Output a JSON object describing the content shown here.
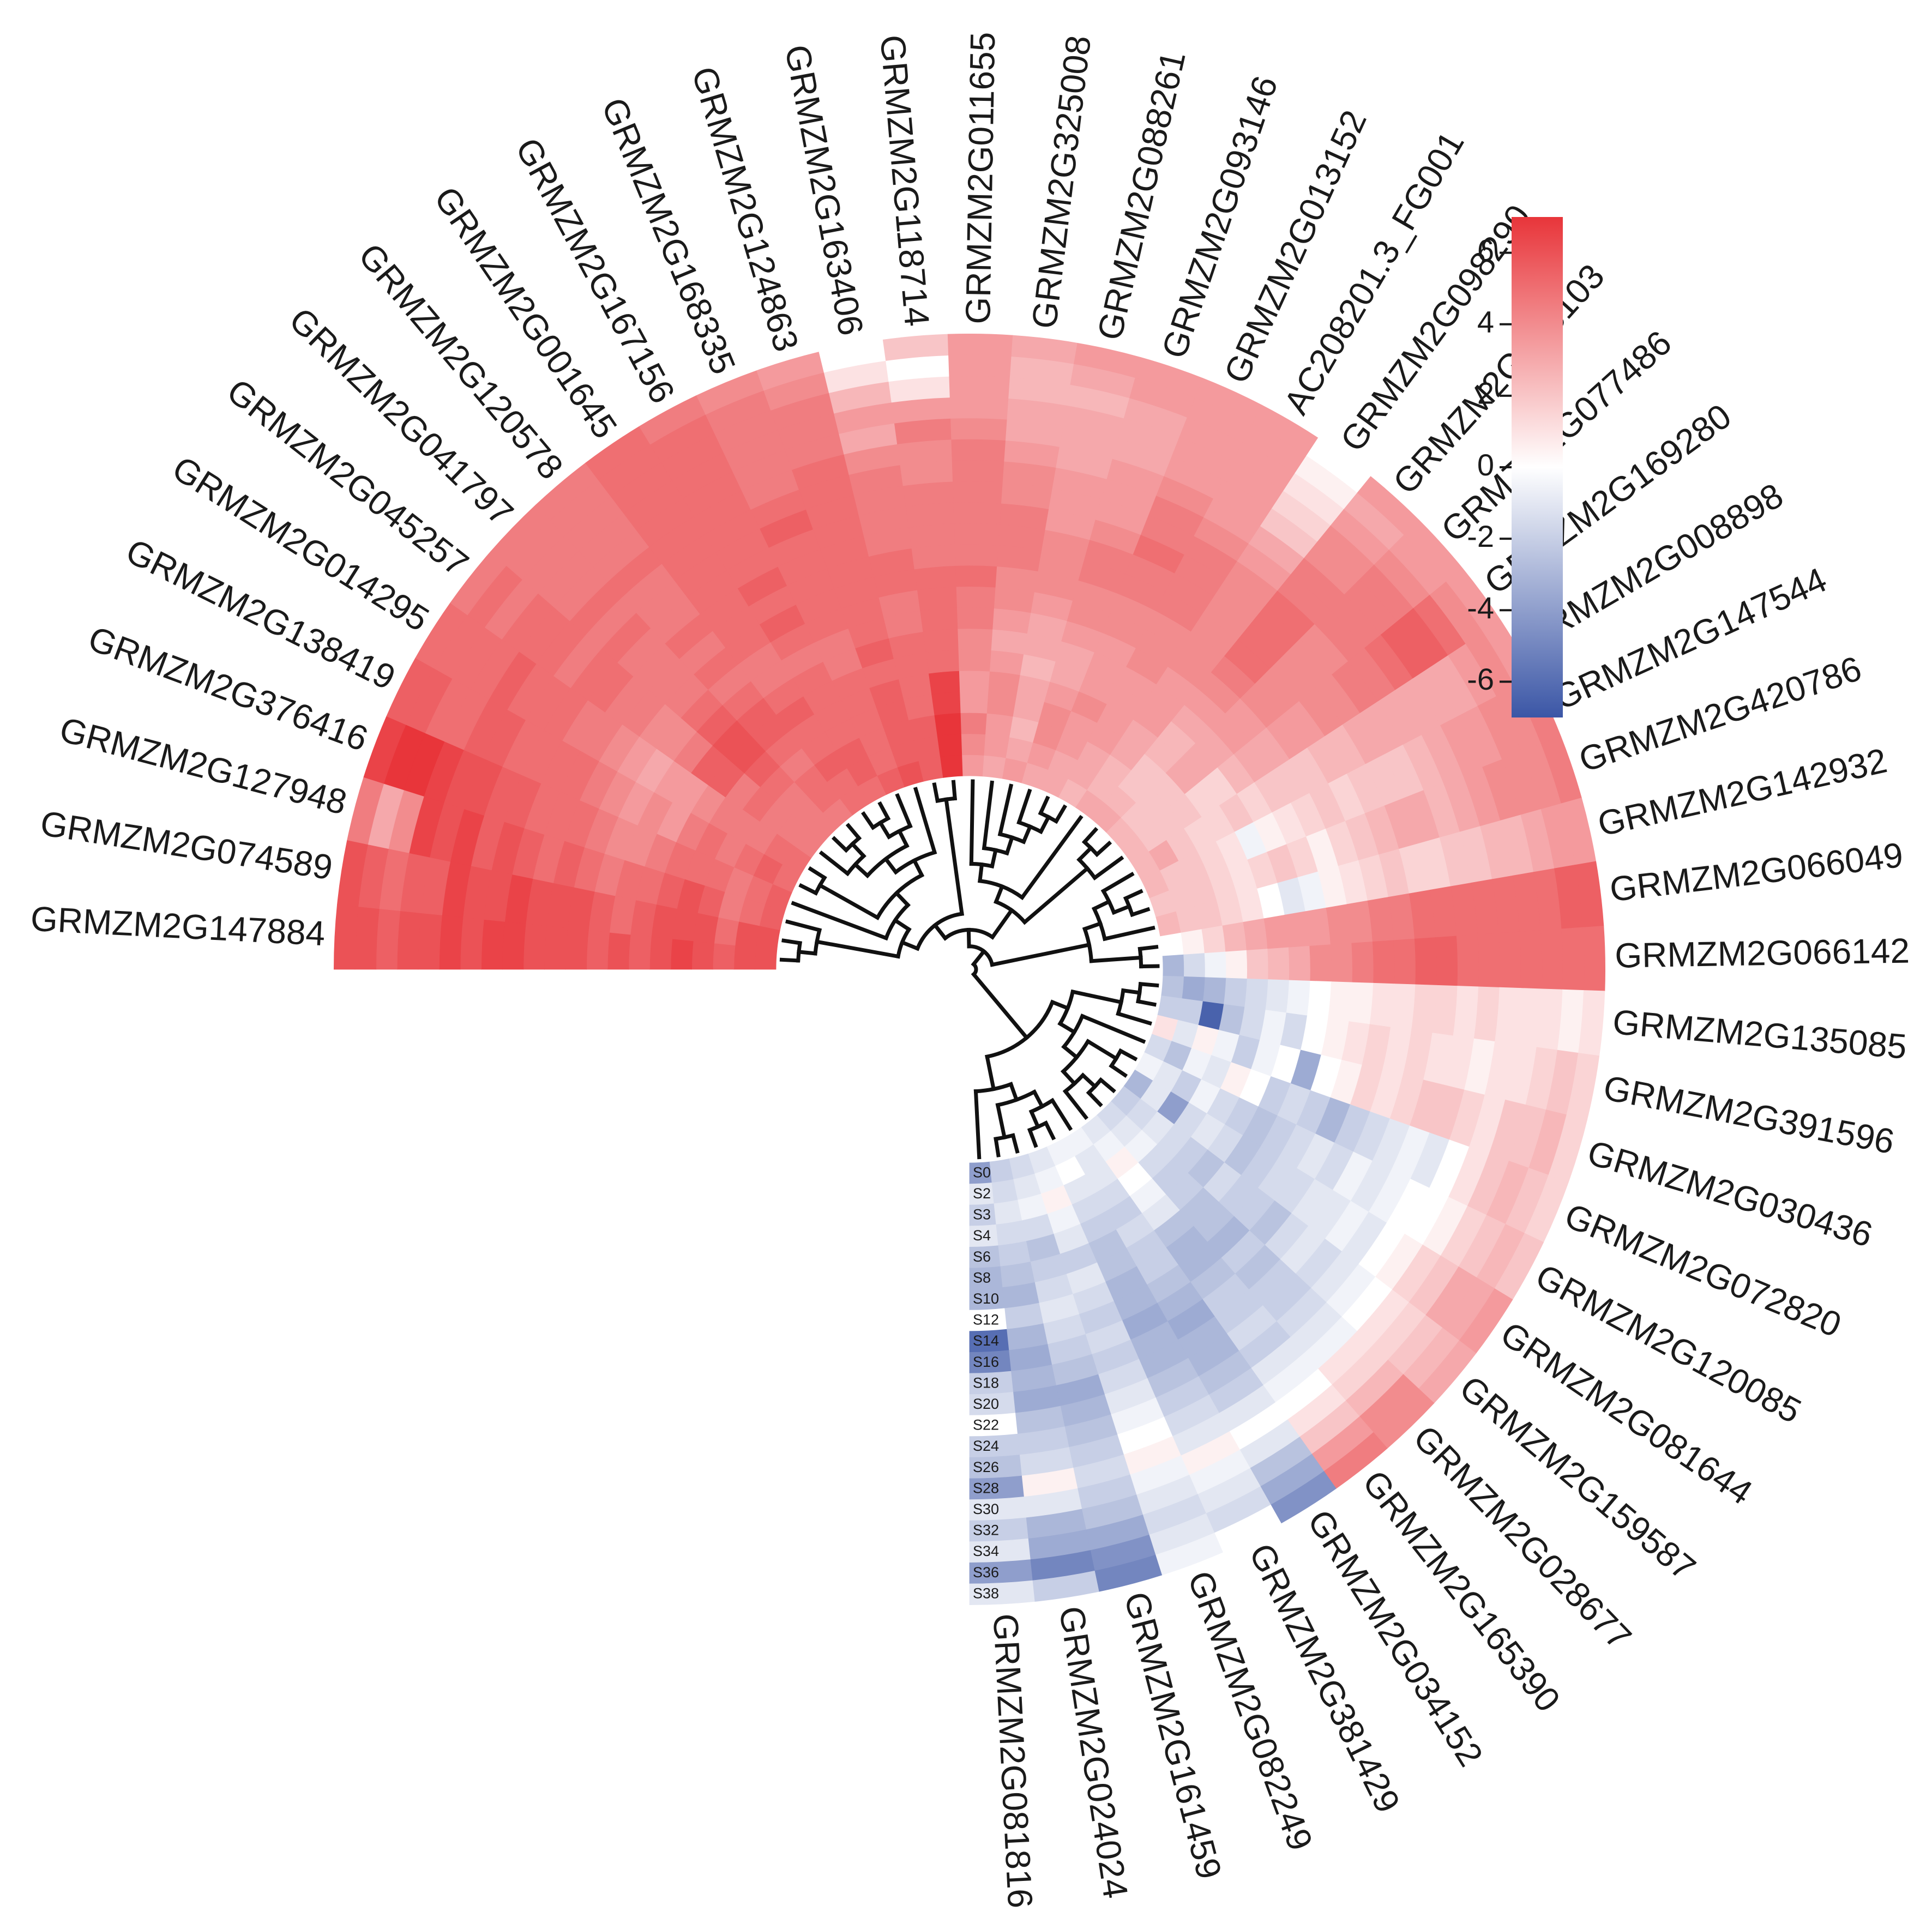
{
  "chart_data": {
    "type": "heatmap",
    "layout": "circular",
    "title": "",
    "genes_clockwise": [
      "GRMZM2G147884",
      "GRMZM2G074589",
      "GRMZM2G127948",
      "GRMZM2G376416",
      "GRMZM2G138419",
      "GRMZM2G014295",
      "GRMZM2G045257",
      "GRMZM2G041797",
      "GRMZM2G120578",
      "GRMZM2G001645",
      "GRMZM2G167156",
      "GRMZM2G168335",
      "GRMZM2G124863",
      "GRMZM2G163406",
      "GRMZM2G118714",
      "GRMZM2G011655",
      "GRMZM2G325008",
      "GRMZM2G088261",
      "GRMZM2G093146",
      "GRMZM2G013152",
      "AC208201.3_FG001",
      "GRMZM2G098290",
      "GRMZM2G153103",
      "GRMZM2G077486",
      "GRMZM2G169280",
      "GRMZM2G008898",
      "GRMZM2G147544",
      "GRMZM2G420786",
      "GRMZM2G142932",
      "GRMZM2G066049",
      "GRMZM2G066142",
      "GRMZM2G135085",
      "GRMZM2G391596",
      "GRMZM2G030436",
      "GRMZM2G072820",
      "GRMZM2G120085",
      "GRMZM2G081644",
      "GRMZM2G159587",
      "GRMZM2G028677",
      "GRMZM2G165390",
      "GRMZM2G034152",
      "GRMZM2G381429",
      "GRMZM2G082249",
      "GRMZM2G161459",
      "GRMZM2G024024",
      "GRMZM2G081816"
    ],
    "samples_inner_to_outer": [
      "S0",
      "S2",
      "S3",
      "S4",
      "S6",
      "S8",
      "S10",
      "S12",
      "S14",
      "S16",
      "S18",
      "S20",
      "S22",
      "S24",
      "S26",
      "S28",
      "S30",
      "S32",
      "S34",
      "S36",
      "S38"
    ],
    "values": [
      [
        6,
        6,
        5.5,
        6,
        6.5,
        6,
        5.5,
        6,
        5.5,
        6,
        6,
        6,
        6.5,
        6.5,
        6,
        6.5,
        6,
        6,
        5.5,
        6,
        6
      ],
      [
        6,
        6,
        5,
        6,
        6,
        6,
        5.5,
        5,
        5.5,
        6,
        6,
        6,
        6.5,
        6,
        6,
        6.5,
        5.5,
        5.5,
        5,
        5.5,
        6
      ],
      [
        5.5,
        5,
        4.5,
        5.5,
        6,
        5.5,
        5,
        5,
        4.5,
        5,
        5.5,
        5,
        5.5,
        6,
        5.5,
        6.5,
        6,
        6.5,
        4,
        3,
        4.5
      ],
      [
        5.5,
        5,
        4.5,
        5,
        5,
        5,
        4.5,
        4,
        4,
        4.5,
        5,
        5,
        5,
        5.5,
        5.5,
        6,
        6,
        6.5,
        7,
        7,
        6.5
      ],
      [
        5,
        5.5,
        5,
        4.5,
        5,
        4.5,
        3.5,
        4,
        3.5,
        4,
        4.5,
        5,
        5,
        5,
        5,
        5.5,
        5.5,
        5,
        5,
        5.5,
        5.5
      ],
      [
        5,
        5,
        4.5,
        4.5,
        4.5,
        4,
        3.5,
        3.5,
        3,
        3.5,
        4,
        4.5,
        4.5,
        5,
        5,
        5,
        5.5,
        5,
        5,
        5,
        5
      ],
      [
        4.5,
        4.5,
        4.5,
        5,
        4.5,
        5.5,
        5.5,
        4.5,
        4,
        4,
        4.5,
        4.5,
        5,
        5,
        4.5,
        5,
        5,
        5,
        4.5,
        5,
        4.5
      ],
      [
        4.5,
        4.5,
        4.5,
        5,
        5.5,
        6,
        6,
        5.5,
        5,
        4.5,
        4.5,
        4.5,
        4.5,
        5,
        4.5,
        5,
        4.5,
        4.5,
        4.5,
        4.5,
        4.5
      ],
      [
        4.5,
        5,
        5,
        4.5,
        5,
        5.5,
        5.5,
        5,
        4.5,
        5,
        4.5,
        5,
        4.5,
        4.5,
        4.5,
        5,
        4.5,
        4.5,
        4.5,
        4.5,
        4.5
      ],
      [
        5,
        5,
        5.5,
        5,
        5,
        5.5,
        5,
        4.5,
        4.5,
        5,
        5,
        5,
        5,
        5,
        5,
        5,
        5,
        5,
        5,
        5,
        5
      ],
      [
        5,
        5.5,
        5.5,
        5,
        5,
        5,
        5,
        4.5,
        5,
        5.5,
        5,
        5.5,
        5,
        5,
        5,
        5,
        5,
        5,
        5,
        5,
        4.5
      ],
      [
        5.5,
        5,
        5,
        5,
        5,
        5,
        4.5,
        4.5,
        5,
        5,
        5,
        5,
        5,
        5.5,
        5,
        4.5,
        4.5,
        4.5,
        4.5,
        4.5,
        4
      ],
      [
        6,
        5.5,
        5.5,
        5.5,
        5.5,
        5,
        5.5,
        5,
        5,
        5,
        5,
        5,
        5,
        5,
        5,
        5,
        4.5,
        4.5,
        4.5,
        4,
        3.5
      ],
      [
        5.5,
        5.5,
        5.5,
        5,
        5,
        5,
        5,
        4.5,
        4.5,
        5,
        5,
        4.5,
        4.5,
        4.5,
        4.5,
        4,
        3,
        3.5,
        2.5,
        1,
        0
      ],
      [
        7,
        7,
        7,
        6.5,
        6.5,
        5,
        5,
        5,
        5,
        5,
        4.5,
        4.5,
        4.5,
        4.5,
        4,
        4,
        4.5,
        3.5,
        1,
        0,
        2
      ],
      [
        3.5,
        4,
        4.5,
        3.5,
        3.5,
        4,
        4,
        4.5,
        4.5,
        5,
        4.5,
        4.5,
        4.5,
        4.5,
        4.5,
        4.5,
        4,
        3.5,
        3.5,
        3.5,
        3.5
      ],
      [
        3,
        3.5,
        3.5,
        4,
        4,
        3.5,
        3,
        3.5,
        4,
        4,
        4.5,
        4.5,
        4.5,
        4,
        4,
        3.5,
        3,
        3,
        2.5,
        2.5,
        3
      ],
      [
        3.5,
        3,
        2.5,
        3,
        3,
        2.5,
        3,
        3,
        3.5,
        4,
        4,
        4,
        3.5,
        3.5,
        3.5,
        3,
        3,
        3,
        2.5,
        3,
        3.5
      ],
      [
        3,
        3.5,
        4,
        4,
        3.5,
        3,
        3,
        3.5,
        4,
        4,
        4.5,
        4.5,
        4,
        3.5,
        3.5,
        3.5,
        3,
        3,
        3,
        3.5,
        3.5
      ],
      [
        3,
        3,
        3.5,
        3.5,
        4,
        3.5,
        3.5,
        3.5,
        4,
        4,
        4.5,
        4.5,
        5,
        4.5,
        4.5,
        4,
        3.5,
        3.5,
        3.5,
        3.5,
        3.5
      ],
      [
        2.5,
        3,
        3,
        3.5,
        3.5,
        3.5,
        3.5,
        4,
        4,
        4,
        4.5,
        4.5,
        4.5,
        4.5,
        4,
        3.5,
        3.5,
        3.5,
        3.5,
        3.5,
        3.5
      ],
      [
        3,
        2.5,
        2.5,
        3,
        3,
        3.5,
        3.5,
        3.5,
        4,
        4,
        4,
        4,
        4,
        4,
        3.5,
        3,
        2,
        1.5,
        1,
        0.5,
        0
      ],
      [
        3,
        2.5,
        2,
        2,
        2.5,
        2.5,
        3,
        3.5,
        4,
        4.5,
        5,
        5,
        5,
        5,
        4.5,
        4.5,
        4,
        4,
        3.5,
        3,
        3.5
      ],
      [
        2.5,
        2,
        2,
        2,
        3,
        3,
        3,
        3.5,
        3.5,
        4,
        4,
        4,
        4,
        4,
        4.5,
        4.5,
        4.5,
        4.5,
        4,
        3.5,
        3.5
      ],
      [
        2.5,
        2,
        2,
        2,
        1.5,
        1.5,
        2.5,
        3,
        3,
        3.5,
        3.5,
        4,
        4,
        4.5,
        4.5,
        5,
        5.5,
        5.5,
        5,
        4,
        3.5
      ],
      [
        2.5,
        3,
        2,
        1.5,
        1.5,
        2,
        1.5,
        2,
        2,
        2,
        2.5,
        2.5,
        3,
        3,
        3,
        3,
        3,
        3,
        3.5,
        4,
        3.5
      ],
      [
        2.5,
        2,
        2,
        1.5,
        1,
        -0.5,
        0.5,
        1,
        1.5,
        2,
        1.5,
        2,
        2,
        2,
        2.5,
        3,
        3.5,
        3.5,
        4,
        4,
        4.5
      ],
      [
        2,
        2,
        2,
        1.5,
        1,
        1.5,
        2,
        1.5,
        0.5,
        1.5,
        2,
        2.5,
        3,
        3,
        2.5,
        3,
        3.5,
        4,
        4,
        4,
        4.5
      ],
      [
        2.5,
        2,
        2,
        1.5,
        1,
        0,
        -1,
        -0.5,
        0.5,
        1,
        1.5,
        2,
        1.5,
        1.5,
        2,
        2,
        2.5,
        2.5,
        3,
        3.5,
        3.5
      ],
      [
        0,
        0.5,
        1.5,
        2.5,
        3,
        3.5,
        3.5,
        3.5,
        4,
        4,
        4.5,
        4.5,
        5,
        5,
        5,
        5,
        5,
        5,
        5,
        5.5,
        5.5
      ],
      [
        -3,
        -1.5,
        -0.5,
        0.5,
        2,
        2.5,
        3,
        4,
        4,
        4.5,
        5,
        5,
        5.5,
        5.5,
        5,
        5,
        5,
        5,
        5,
        5,
        5
      ],
      [
        -2.5,
        -3.5,
        -3,
        -2,
        -1.5,
        -1,
        -0.5,
        0,
        0.5,
        0.5,
        1,
        1,
        1.5,
        1.5,
        1,
        1.5,
        1,
        1,
        1,
        0.5,
        1
      ],
      [
        -2,
        -2,
        -6.5,
        -2.5,
        -1.5,
        -0.5,
        -1.5,
        0,
        0.5,
        1,
        1.5,
        1,
        1.5,
        1,
        1,
        0.5,
        1,
        1,
        1.5,
        2,
        1.5
      ],
      [
        1,
        -1,
        0.5,
        -0.5,
        -2,
        -0.5,
        0,
        -3.5,
        0,
        0.5,
        1.5,
        1,
        1.5,
        2,
        2,
        1.5,
        1,
        2,
        2,
        2.5,
        1.5
      ],
      [
        -1.5,
        -2.5,
        -0.5,
        -1,
        0.5,
        0,
        -2,
        -1.5,
        -2,
        -3,
        -2,
        -1.5,
        -1,
        -0.5,
        -1,
        0,
        1,
        2,
        2.5,
        2,
        1.5
      ],
      [
        -0.5,
        -1,
        -2,
        -0.5,
        -1.5,
        -2,
        -2.5,
        -2,
        -1.5,
        -1,
        -1.5,
        -0.5,
        -1,
        -0.5,
        0,
        0,
        0.5,
        1.5,
        2,
        2.5,
        2
      ],
      [
        -3,
        -1,
        -4,
        -1.5,
        -1,
        -1.5,
        -2.5,
        -2,
        -1.5,
        -1.5,
        -1,
        -1,
        -0.5,
        -1,
        0,
        0.5,
        1.5,
        2,
        3,
        3,
        3.5
      ],
      [
        -2,
        -1.5,
        -1,
        -1.5,
        -2,
        -2.5,
        -1.5,
        -2,
        -2,
        -2.5,
        -1.5,
        -1,
        -1.5,
        -1,
        -0.5,
        0,
        1,
        1.5,
        2,
        2.5,
        3
      ],
      [
        -1.5,
        -1,
        -0.5,
        -1.5,
        -2,
        -2,
        -2.5,
        -2.5,
        -3,
        -2,
        -2.5,
        -2,
        -2,
        -1.5,
        -1,
        -0.5,
        1,
        1.5,
        2.5,
        4,
        4
      ],
      [
        -1,
        -0.5,
        0.5,
        0,
        -0.5,
        -1,
        -2.5,
        -3,
        -3,
        -2.5,
        -2,
        -2,
        -1.5,
        -2,
        -1,
        -0.5,
        0,
        1,
        2,
        3.5,
        4.5
      ],
      [
        -0.5,
        -1,
        -1,
        -1.5,
        -2,
        -1.5,
        -2,
        -2,
        -2.5,
        -3,
        -3.5,
        -3,
        -3,
        -2.5,
        -2,
        -1,
        0,
        -1,
        -2.5,
        -3.5,
        -4.5
      ],
      [
        -0.5,
        0,
        -1,
        -1.5,
        -2,
        -2.5,
        -2.5,
        -3,
        -3,
        -3.5,
        -3,
        -3,
        -2.5,
        -2,
        -1.5,
        -1,
        0.5,
        -0.5,
        -1,
        -1.5,
        0
      ],
      [
        -1,
        -0.5,
        0.5,
        -0.5,
        -1,
        -2,
        -1,
        -1.5,
        -2,
        -1.5,
        -2,
        -1.5,
        -1,
        -0.5,
        0,
        0.5,
        -0.5,
        -1,
        -1.5,
        -1,
        -0.5
      ],
      [
        -1.5,
        -1,
        -0.5,
        -1.5,
        -2.5,
        -2,
        -1.5,
        -1,
        -1.5,
        -2,
        -2.5,
        -3.5,
        -3,
        -2.5,
        -2,
        -1.5,
        -2,
        -2.5,
        -3.5,
        -4.5,
        -5
      ],
      [
        -2,
        -1.5,
        -1,
        -1.5,
        -2,
        -2.5,
        -3,
        -2,
        -3,
        -3.5,
        -3,
        -3.5,
        -2.5,
        -2,
        -1.5,
        0.5,
        -1,
        -3,
        -3.5,
        -5,
        -2
      ],
      [
        -4,
        -1,
        -2,
        -1,
        -2.5,
        -3,
        -3,
        0,
        -6,
        -5,
        -2,
        -1.5,
        0,
        -2,
        -2.5,
        -4,
        -1,
        -2,
        -1,
        -4,
        -1
      ]
    ],
    "color_scale": {
      "min": -7,
      "max": 7,
      "low_color": "#3b56a6",
      "mid_color": "#ffffff",
      "high_color": "#e8353a",
      "ticks": [
        "6",
        "4",
        "2",
        "0",
        "-2",
        "-4",
        "-6"
      ]
    },
    "legend_position": "top-right",
    "row_dendrogram": "center"
  }
}
